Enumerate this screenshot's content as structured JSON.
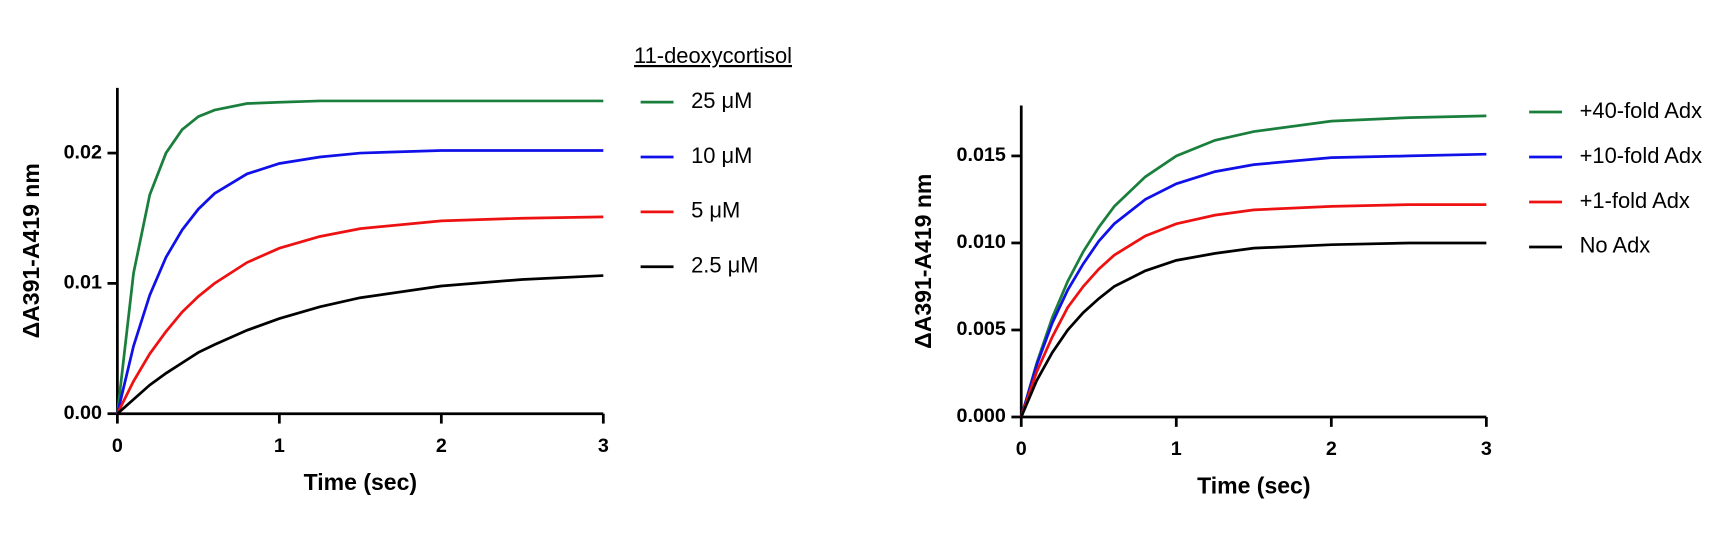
{
  "chart_data": [
    {
      "type": "line",
      "x_label": "Time (sec)",
      "y_label": "ΔA391-A419 nm",
      "legend_title": "11-deoxycortisol",
      "legend": "right",
      "xlim": [
        0,
        3
      ],
      "xticks": [
        0,
        1,
        2,
        3
      ],
      "ylim": [
        0,
        0.025
      ],
      "yticks": [
        {
          "value": 0,
          "label": "0.00"
        },
        {
          "value": 0.01,
          "label": "0.01"
        },
        {
          "value": 0.02,
          "label": "0.02"
        }
      ],
      "x": [
        0,
        0.1,
        0.2,
        0.3,
        0.4,
        0.5,
        0.6,
        0.8,
        1.0,
        1.25,
        1.5,
        2.0,
        2.5,
        3.0
      ],
      "series": [
        {
          "name": "25 μM",
          "color": "#1a7f3c",
          "values": [
            0,
            0.0108,
            0.0168,
            0.02,
            0.0218,
            0.0228,
            0.0233,
            0.0238,
            0.0239,
            0.024,
            0.024,
            0.024,
            0.024,
            0.024
          ]
        },
        {
          "name": "10 μM",
          "color": "#1010e8",
          "values": [
            0,
            0.0052,
            0.0091,
            0.012,
            0.0141,
            0.0157,
            0.0169,
            0.0184,
            0.0192,
            0.0197,
            0.02,
            0.0202,
            0.0202,
            0.0202
          ]
        },
        {
          "name": "5 μM",
          "color": "#ee1111",
          "values": [
            0,
            0.0025,
            0.0046,
            0.0063,
            0.0078,
            0.009,
            0.01,
            0.0116,
            0.0127,
            0.0136,
            0.0142,
            0.0148,
            0.015,
            0.0151
          ]
        },
        {
          "name": "2.5 μM",
          "color": "#000000",
          "values": [
            0,
            0.0011,
            0.0022,
            0.0031,
            0.0039,
            0.0047,
            0.0053,
            0.0064,
            0.0073,
            0.0082,
            0.0089,
            0.0098,
            0.0103,
            0.0106
          ]
        }
      ]
    },
    {
      "type": "line",
      "x_label": "Time (sec)",
      "y_label": "ΔA391-A419 nm",
      "legend": "right",
      "xlim": [
        0,
        3
      ],
      "xticks": [
        0,
        1,
        2,
        3
      ],
      "ylim": [
        0,
        0.0179
      ],
      "yticks": [
        {
          "value": 0,
          "label": "0.000"
        },
        {
          "value": 0.005,
          "label": "0.005"
        },
        {
          "value": 0.01,
          "label": "0.010"
        },
        {
          "value": 0.015,
          "label": "0.015"
        }
      ],
      "x": [
        0,
        0.1,
        0.2,
        0.3,
        0.4,
        0.5,
        0.6,
        0.8,
        1.0,
        1.25,
        1.5,
        2.0,
        2.5,
        3.0
      ],
      "series": [
        {
          "name": "+40-fold Adx",
          "color": "#1a7f3c",
          "values": [
            0,
            0.0031,
            0.0057,
            0.0078,
            0.0095,
            0.0109,
            0.0121,
            0.0138,
            0.015,
            0.0159,
            0.0164,
            0.017,
            0.0172,
            0.0173
          ]
        },
        {
          "name": "+10-fold Adx",
          "color": "#1010e8",
          "values": [
            0,
            0.003,
            0.0054,
            0.0073,
            0.0088,
            0.0101,
            0.0111,
            0.0125,
            0.0134,
            0.0141,
            0.0145,
            0.0149,
            0.015,
            0.0151
          ]
        },
        {
          "name": "+1-fold Adx",
          "color": "#ee1111",
          "values": [
            0,
            0.0026,
            0.0046,
            0.0063,
            0.0075,
            0.0085,
            0.0093,
            0.0104,
            0.0111,
            0.0116,
            0.0119,
            0.0121,
            0.0122,
            0.0122
          ]
        },
        {
          "name": "No Adx",
          "color": "#000000",
          "values": [
            0,
            0.0021,
            0.0037,
            0.005,
            0.006,
            0.0068,
            0.0075,
            0.0084,
            0.009,
            0.0094,
            0.0097,
            0.0099,
            0.01,
            0.01
          ]
        }
      ]
    }
  ]
}
